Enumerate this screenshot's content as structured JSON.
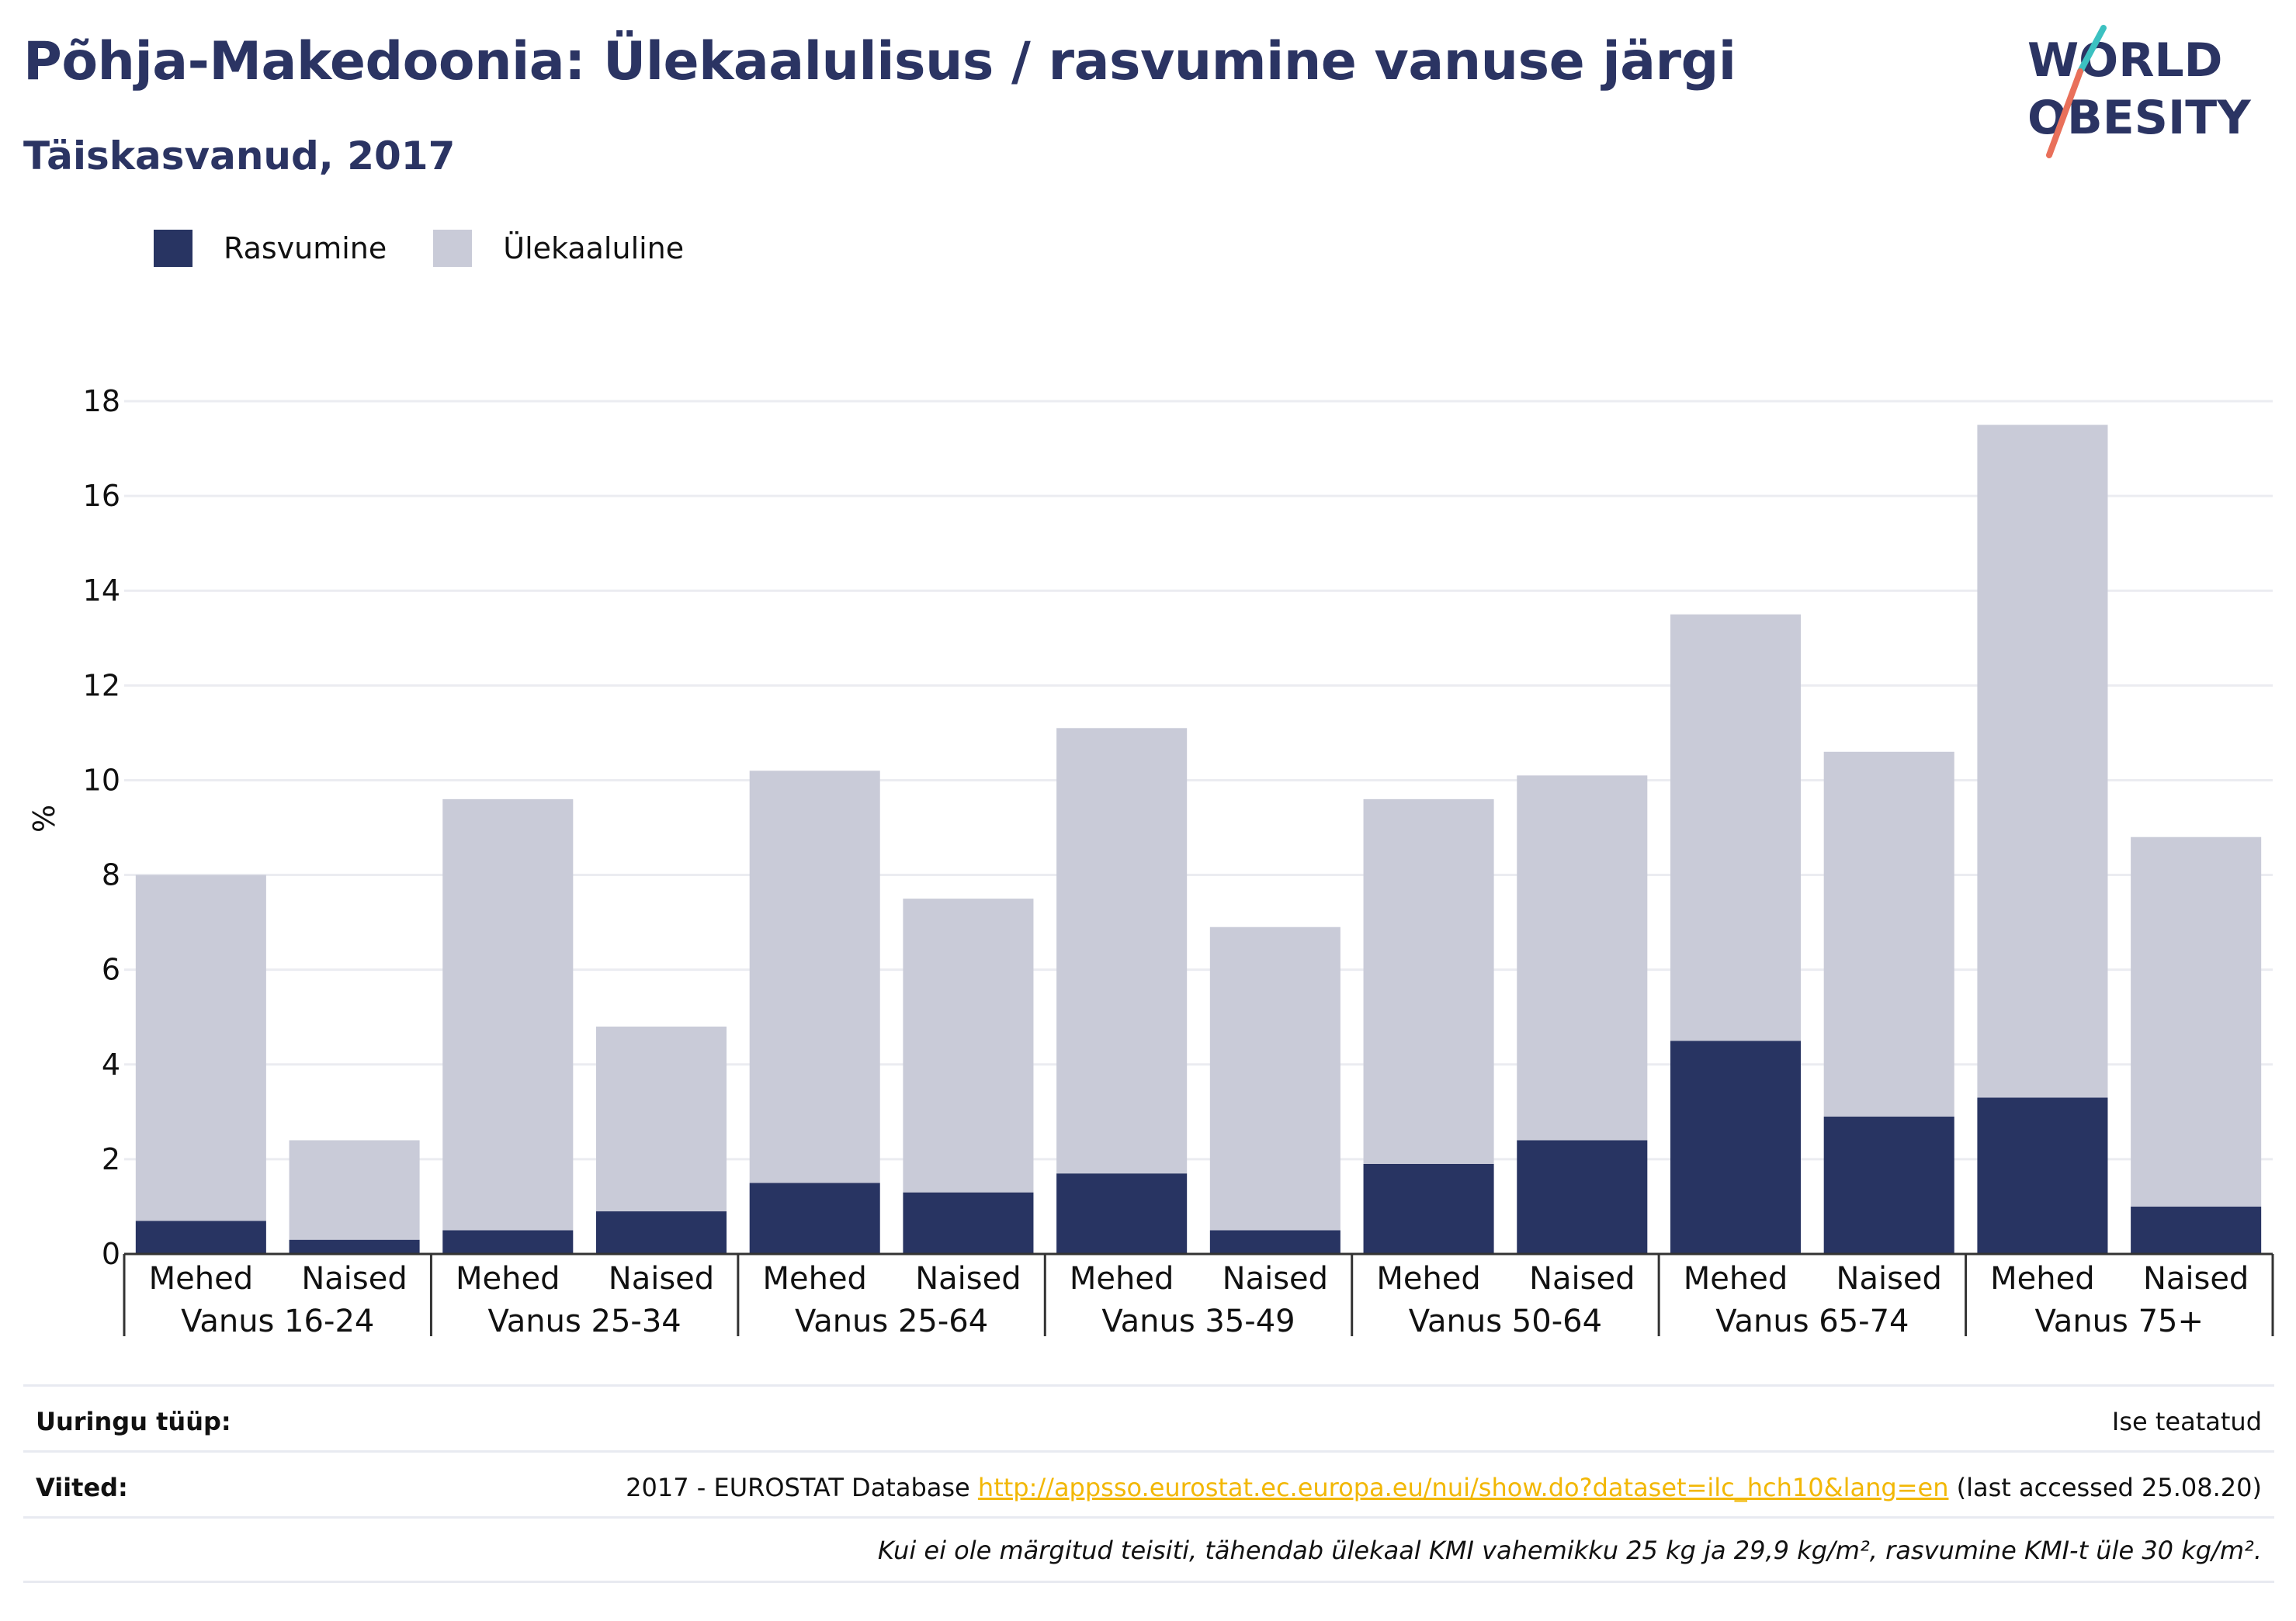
{
  "title": "Põhja-Makedoonia: Ülekaalulisus / rasvumine vanuse järgi",
  "subtitle": "Täiskasvanud, 2017",
  "logo": {
    "line1": "WORLD",
    "line2": "OBESITY"
  },
  "colors": {
    "obesity": "#283462",
    "overweight": "#c9cbd8",
    "title": "#2b3463",
    "link": "#f2b705",
    "logo_slash_top": "#3cc1c1",
    "logo_slash_bottom": "#e9705a"
  },
  "chart_data": {
    "type": "bar",
    "stacked": true,
    "ylabel": "%",
    "ylim": [
      0,
      18
    ],
    "yticks": [
      0,
      2,
      4,
      6,
      8,
      10,
      12,
      14,
      16,
      18
    ],
    "grid": true,
    "legend_position": "top-left",
    "groups": [
      "Vanus 16-24",
      "Vanus 25-34",
      "Vanus 25-64",
      "Vanus 35-49",
      "Vanus 50-64",
      "Vanus 65-74",
      "Vanus 75+"
    ],
    "categories": [
      "Mehed",
      "Naised",
      "Mehed",
      "Naised",
      "Mehed",
      "Naised",
      "Mehed",
      "Naised",
      "Mehed",
      "Naised",
      "Mehed",
      "Naised",
      "Mehed",
      "Naised"
    ],
    "series": [
      {
        "name": "Rasvumine",
        "color": "#283462",
        "values": [
          0.7,
          0.3,
          0.5,
          0.9,
          1.5,
          1.3,
          1.7,
          0.5,
          1.9,
          2.4,
          4.5,
          2.9,
          3.3,
          1.0
        ]
      },
      {
        "name": "Ülekaaluline",
        "color": "#c9cbd8",
        "values": [
          7.3,
          2.1,
          9.1,
          3.9,
          8.7,
          6.2,
          9.4,
          6.4,
          7.7,
          7.7,
          9.0,
          7.7,
          14.2,
          7.8
        ]
      }
    ]
  },
  "footer": {
    "survey_label": "Uuringu tüüp:",
    "survey_value": "Ise teatatud",
    "refs_label": "Viited:",
    "refs_prefix": "2017 - EUROSTAT Database ",
    "refs_link": "http://appsso.eurostat.ec.europa.eu/nui/show.do?dataset=ilc_hch10&lang=en",
    "refs_suffix": " (last accessed 25.08.20)",
    "note": "Kui ei ole märgitud teisiti, tähendab ülekaal KMI vahemikku 25 kg ja 29,9 kg/m², rasvumine KMI-t üle 30 kg/m²."
  }
}
